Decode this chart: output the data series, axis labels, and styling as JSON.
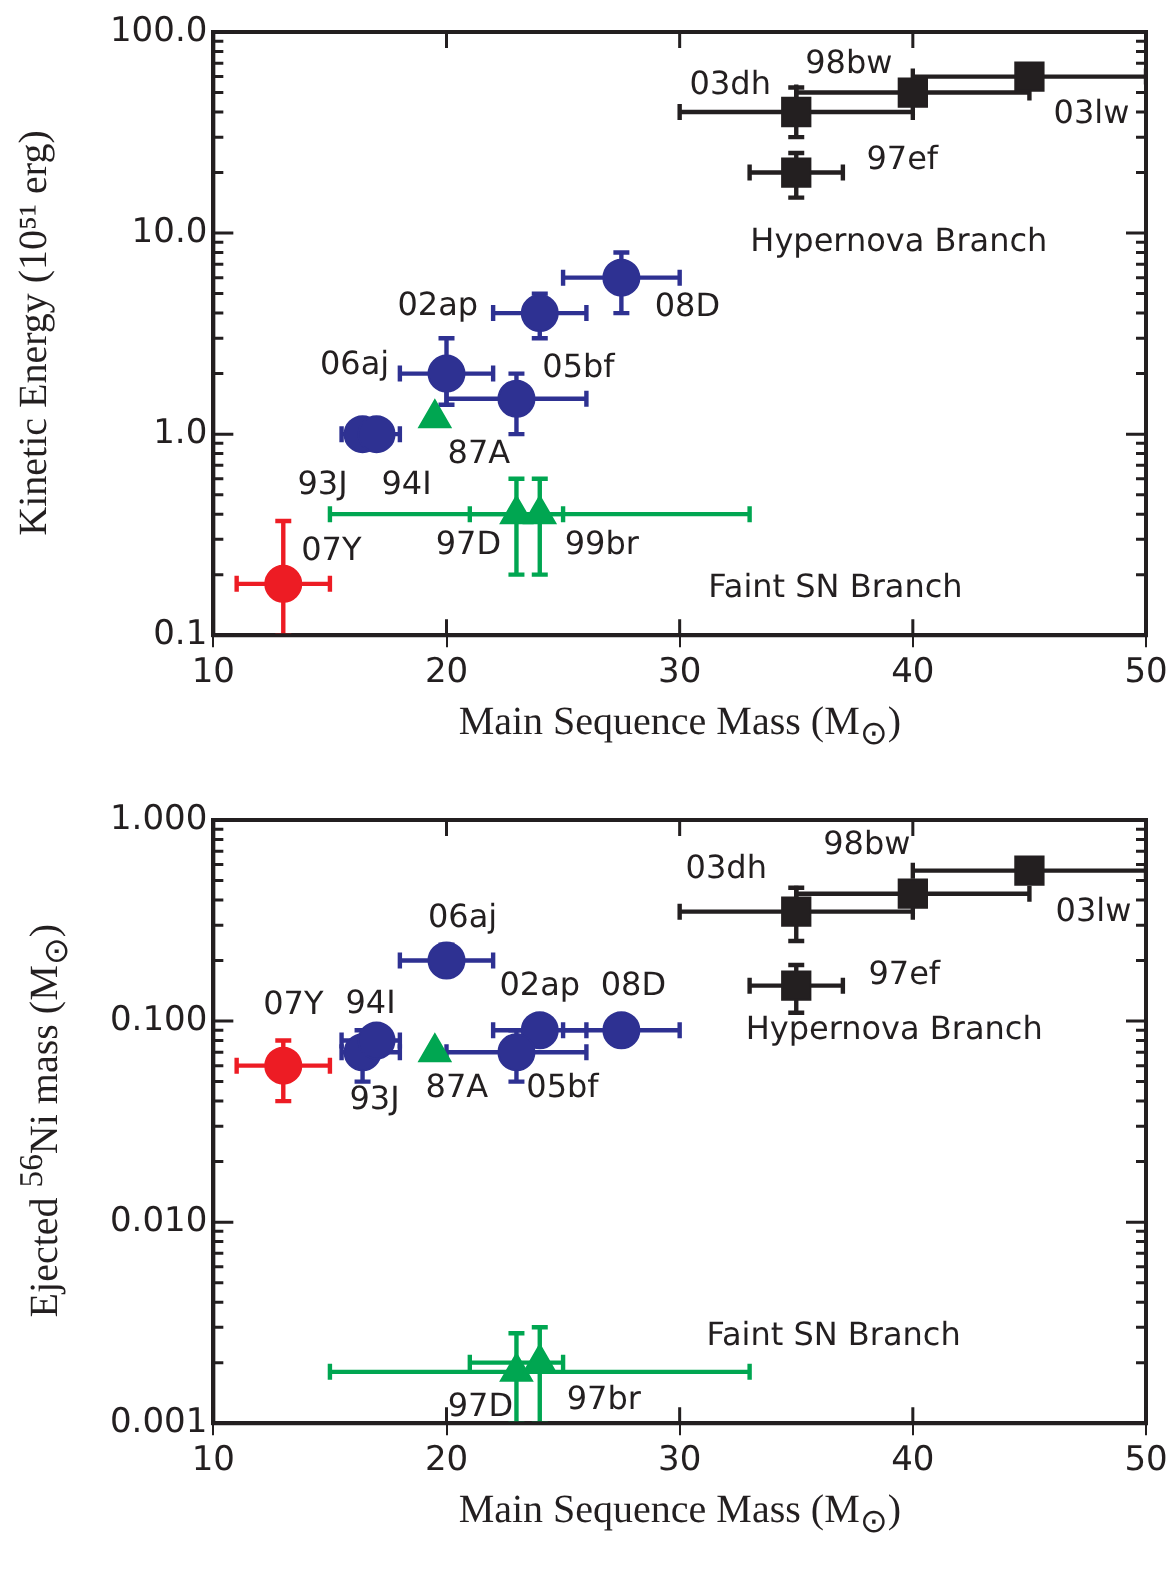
{
  "chart_data": [
    {
      "type": "scatter",
      "xlabel": "Main Sequence Mass (M$_{⊙}$)",
      "ylabel": "Kinetic Energy (10⁵¹ erg)",
      "log": "y",
      "grid": false,
      "xlim": [
        10,
        50
      ],
      "xticks": [
        10,
        20,
        30,
        40,
        50
      ],
      "ylim": [
        0.1,
        100
      ],
      "yticks": [
        {
          "value": 0.1,
          "label": "0.1"
        },
        {
          "value": 0.2,
          "label": null
        },
        {
          "value": 0.3,
          "label": null
        },
        {
          "value": 0.4,
          "label": null
        },
        {
          "value": 0.5,
          "label": null
        },
        {
          "value": 0.6,
          "label": null
        },
        {
          "value": 0.7,
          "label": null
        },
        {
          "value": 0.8,
          "label": null
        },
        {
          "value": 0.9,
          "label": null
        },
        {
          "value": 1,
          "label": "1.0"
        },
        {
          "value": 2,
          "label": null
        },
        {
          "value": 3,
          "label": null
        },
        {
          "value": 4,
          "label": null
        },
        {
          "value": 5,
          "label": null
        },
        {
          "value": 6,
          "label": null
        },
        {
          "value": 7,
          "label": null
        },
        {
          "value": 8,
          "label": null
        },
        {
          "value": 9,
          "label": null
        },
        {
          "value": 10,
          "label": "10.0"
        },
        {
          "value": 20,
          "label": null
        },
        {
          "value": 30,
          "label": null
        },
        {
          "value": 40,
          "label": null
        },
        {
          "value": 50,
          "label": null
        },
        {
          "value": 60,
          "label": null
        },
        {
          "value": 70,
          "label": null
        },
        {
          "value": 80,
          "label": null
        },
        {
          "value": 90,
          "label": null
        },
        {
          "value": 100,
          "label": "100.0"
        }
      ],
      "series": [
        {
          "color": "#231f20",
          "marker": "square",
          "x": [
            35,
            40,
            45,
            35
          ],
          "values": [
            40,
            50,
            60,
            20
          ],
          "errors": [
            [
              30,
              53
            ],
            null,
            null,
            [
              15,
              25
            ]
          ],
          "xerrors": [
            [
              30,
              40
            ],
            [
              35,
              45
            ],
            [
              40,
              50
            ],
            [
              33,
              37
            ]
          ]
        },
        {
          "color": "#2e3192",
          "marker": "circle",
          "x": [
            27.5,
            24,
            20,
            23,
            16.4,
            17
          ],
          "values": [
            6,
            4,
            2,
            1.5,
            1,
            1
          ],
          "errors": [
            [
              4,
              8
            ],
            [
              3,
              5
            ],
            [
              1.4,
              3
            ],
            [
              1,
              2
            ],
            null,
            null
          ],
          "xerrors": [
            [
              25,
              30
            ],
            [
              22,
              26
            ],
            [
              18,
              22
            ],
            [
              20,
              26
            ],
            [
              15.5,
              17.5
            ],
            [
              17,
              18
            ]
          ]
        },
        {
          "color": "#00a651",
          "marker": "triangle",
          "x": [
            19.5,
            23,
            24
          ],
          "values": [
            1.2,
            0.4,
            0.4
          ],
          "errors": [
            null,
            [
              0.2,
              0.6
            ],
            [
              0.2,
              0.6
            ]
          ],
          "xerrors": [
            null,
            [
              15,
              33
            ],
            [
              21,
              25
            ]
          ]
        },
        {
          "color": "#ed1c24",
          "marker": "circle",
          "x": [
            13
          ],
          "values": [
            0.18
          ],
          "errors": [
            [
              0.1,
              0.37
            ]
          ],
          "xerrors": [
            [
              11,
              15
            ]
          ]
        }
      ],
      "annotations": [
        {
          "text": "03dh",
          "x": 35,
          "y": 40
        },
        {
          "text": "98bw",
          "x": 40,
          "y": 50
        },
        {
          "text": "03lw",
          "x": 45,
          "y": 60
        },
        {
          "text": "97ef",
          "x": 35,
          "y": 20
        },
        "Hypernova Branch",
        {
          "text": "08D",
          "x": 27.5,
          "y": 6
        },
        {
          "text": "02ap",
          "x": 24,
          "y": 4
        },
        {
          "text": "06aj",
          "x": 20,
          "y": 2
        },
        {
          "text": "05bf",
          "x": 23,
          "y": 1.5
        },
        {
          "text": "87A",
          "x": 19.5,
          "y": 1.2
        },
        {
          "text": "93J",
          "x": 16.4,
          "y": 1
        },
        {
          "text": "94I",
          "x": 17,
          "y": 1
        },
        {
          "text": "97D",
          "x": 23,
          "y": 0.4
        },
        {
          "text": "99br",
          "x": 24,
          "y": 0.4
        },
        {
          "text": "07Y",
          "x": 13,
          "y": 0.18
        },
        "Faint SN Branch"
      ]
    },
    {
      "type": "scatter",
      "xlabel": "Main Sequence Mass (M$_{⊙}$)",
      "ylabel": "Ejected $^{56}$Ni mass (M$_{⊙}$)",
      "log": "y",
      "grid": false,
      "xlim": [
        10,
        50
      ],
      "xticks": [
        10,
        20,
        30,
        40,
        50
      ],
      "ylim": [
        0.001,
        1
      ],
      "yticks": [
        {
          "value": 0.001,
          "label": "0.001"
        },
        {
          "value": 0.002,
          "label": null
        },
        {
          "value": 0.003,
          "label": null
        },
        {
          "value": 0.004,
          "label": null
        },
        {
          "value": 0.005,
          "label": null
        },
        {
          "value": 0.006,
          "label": null
        },
        {
          "value": 0.007,
          "label": null
        },
        {
          "value": 0.008,
          "label": null
        },
        {
          "value": 0.009,
          "label": null
        },
        {
          "value": 0.01,
          "label": "0.010"
        },
        {
          "value": 0.02,
          "label": null
        },
        {
          "value": 0.03,
          "label": null
        },
        {
          "value": 0.04,
          "label": null
        },
        {
          "value": 0.05,
          "label": null
        },
        {
          "value": 0.06,
          "label": null
        },
        {
          "value": 0.07,
          "label": null
        },
        {
          "value": 0.08,
          "label": null
        },
        {
          "value": 0.09,
          "label": null
        },
        {
          "value": 0.1,
          "label": "0.100"
        },
        {
          "value": 0.2,
          "label": null
        },
        {
          "value": 0.3,
          "label": null
        },
        {
          "value": 0.4,
          "label": null
        },
        {
          "value": 0.5,
          "label": null
        },
        {
          "value": 0.6,
          "label": null
        },
        {
          "value": 0.7,
          "label": null
        },
        {
          "value": 0.8,
          "label": null
        },
        {
          "value": 0.9,
          "label": null
        },
        {
          "value": 1,
          "label": "1.000"
        }
      ],
      "series": [
        {
          "color": "#231f20",
          "marker": "square",
          "x": [
            35,
            40,
            45,
            35
          ],
          "values": [
            0.35,
            0.43,
            0.56,
            0.15
          ],
          "errors": [
            [
              0.25,
              0.46
            ],
            null,
            null,
            [
              0.11,
              0.19
            ]
          ],
          "xerrors": [
            [
              30,
              40
            ],
            [
              35,
              45
            ],
            [
              40,
              50
            ],
            [
              33,
              37
            ]
          ]
        },
        {
          "color": "#2e3192",
          "marker": "circle",
          "x": [
            20,
            24,
            27.5,
            23,
            16.4,
            17
          ],
          "values": [
            0.2,
            0.09,
            0.09,
            0.07,
            0.07,
            0.08
          ],
          "errors": [
            [
              0.17,
              0.24
            ],
            null,
            null,
            [
              0.05,
              0.09
            ],
            [
              0.05,
              0.09
            ],
            null
          ],
          "xerrors": [
            [
              18,
              22
            ],
            [
              22,
              26
            ],
            [
              25,
              30
            ],
            [
              20,
              26
            ],
            [
              15.5,
              18
            ],
            [
              15.5,
              18
            ]
          ]
        },
        {
          "color": "#00a651",
          "marker": "triangle",
          "x": [
            19.5,
            23,
            24
          ],
          "values": [
            0.07,
            0.0018,
            0.002
          ],
          "errors": [
            null,
            [
              0.001,
              0.0028
            ],
            [
              0.001,
              0.003
            ]
          ],
          "xerrors": [
            null,
            [
              15,
              33
            ],
            [
              21,
              25
            ]
          ]
        },
        {
          "color": "#ed1c24",
          "marker": "circle",
          "x": [
            13
          ],
          "values": [
            0.06
          ],
          "errors": [
            [
              0.04,
              0.08
            ]
          ],
          "xerrors": [
            [
              11,
              15
            ]
          ]
        }
      ],
      "annotations": [
        {
          "text": "03dh",
          "x": 35,
          "y": 0.35
        },
        {
          "text": "98bw",
          "x": 40,
          "y": 0.43
        },
        {
          "text": "03lw",
          "x": 45,
          "y": 0.56
        },
        {
          "text": "06aj",
          "x": 20,
          "y": 0.2
        },
        {
          "text": "97ef",
          "x": 35,
          "y": 0.15
        },
        {
          "text": "02ap",
          "x": 24,
          "y": 0.09
        },
        {
          "text": "08D",
          "x": 27.5,
          "y": 0.09
        },
        "Hypernova Branch",
        {
          "text": "07Y",
          "x": 13,
          "y": 0.06
        },
        {
          "text": "94I",
          "x": 17,
          "y": 0.08
        },
        {
          "text": "93J",
          "x": 16.4,
          "y": 0.07
        },
        {
          "text": "87A",
          "x": 19.5,
          "y": 0.07
        },
        {
          "text": "05bf",
          "x": 23,
          "y": 0.07
        },
        "Faint SN Branch",
        {
          "text": "97D",
          "x": 23,
          "y": 0.0018
        },
        {
          "text": "97br",
          "x": 24,
          "y": 0.002
        }
      ]
    }
  ]
}
